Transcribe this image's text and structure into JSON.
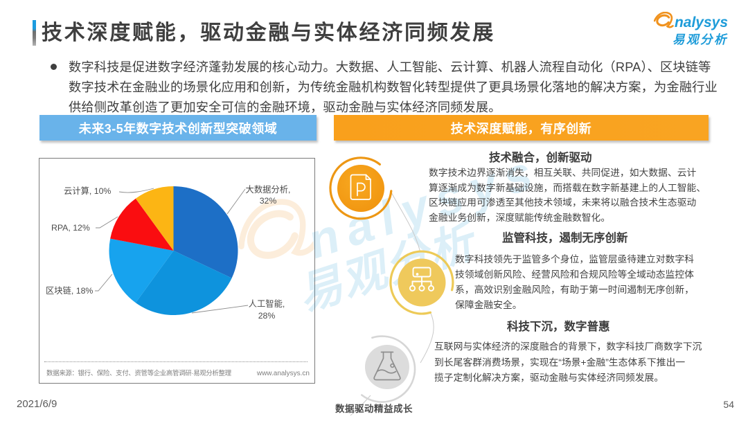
{
  "header": {
    "title": "技术深度赋能，驱动金融与实体经济同频发展",
    "logo": {
      "brand_rest": "nalysys",
      "brand_cn": "易观分析"
    }
  },
  "intro": {
    "bullet_text": "数字科技是促进数字经济蓬勃发展的核心动力。大数据、人工智能、云计算、机器人流程自动化（RPA）、区块链等\n数字技术在金融业的场景化应用和创新，为传统金融机构数智化转型提供了更具场景化落地的解决方案，为金融行业\n供给侧改革创造了更加安全可信的金融环境，驱动金融与实体经济同频发展。"
  },
  "left_panel": {
    "header": "未来3-5年数字技术创新型突破领域",
    "source_label": "数据来源：银行、保险、支付、资管等企业高管调研·易观分析整理",
    "source_site": "www.analysys.cn"
  },
  "chart_data": {
    "type": "pie",
    "title": "未来3-5年数字技术创新型突破领域",
    "start_angle_deg": -90,
    "direction": "clockwise",
    "center": [
      194.5,
      134
    ],
    "radius": 93,
    "slices": [
      {
        "label": "大数据分析",
        "value": 32,
        "color": "#1d6fc6"
      },
      {
        "label": "人工智能",
        "value": 28,
        "color": "#0e93dd"
      },
      {
        "label": "区块链",
        "value": 18,
        "color": "#17a3ee"
      },
      {
        "label": "RPA",
        "value": 12,
        "color": "#fa0d10"
      },
      {
        "label": "云计算",
        "value": 10,
        "color": "#fcb514"
      }
    ]
  },
  "right_panel": {
    "header": "技术深度赋能，有序创新",
    "sections": [
      {
        "title": "技术融合，创新驱动",
        "icon": "document-p-icon",
        "body": "数字技术边界逐渐消失，相互关联、共同促进，如大数据、云计\n算逐渐成为数字新基础设施，而搭载在数字新基建上的人工智能、\n区块链应用可渗透至其他技术领域，未来将以融合技术生态驱动\n金融业务创新，深度赋能传统金融数智化。"
      },
      {
        "title": "监管科技，遏制无序创新",
        "icon": "org-chart-icon",
        "body": "数字科技领先于监管多个身位，监管层亟待建立对数字科\n技领域创新风险、经营风险和合规风险等全域动态监控体\n系，高效识别金融风险，有助于第一时间遏制无序创新，\n保障金融安全。"
      },
      {
        "title": "科技下沉，数字普惠",
        "icon": "flask-icon",
        "body": "互联网与实体经济的深度融合的背景下，数字科技厂商数字下沉\n到长尾客群消费场景，实现在“场景+金融”生态体系下推出一\n揽子定制化解决方案，驱动金融与实体经济同频发展。"
      }
    ]
  },
  "watermark": {
    "brand_rest": "nalysys",
    "brand_cn": "易观分析"
  },
  "footer": {
    "date": "2021/6/9",
    "slogan": "数据驱动精益成长",
    "page_number": "54"
  },
  "colors": {
    "accent_blue_header": "#69b3ea",
    "accent_orange_header": "#f9a01c",
    "logo_blue": "#1e9cd9",
    "logo_orange": "#f0921e",
    "text_dark": "#3f3f3f"
  }
}
